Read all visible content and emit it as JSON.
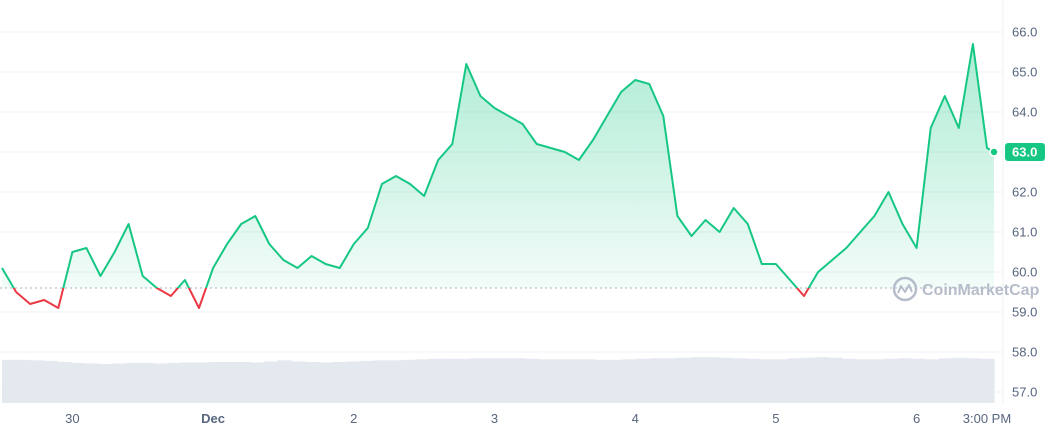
{
  "chart_data": {
    "type": "line",
    "title": "",
    "xlabel": "",
    "ylabel": "",
    "ylim": [
      56.7,
      66.3
    ],
    "y_ticks": [
      "57.0",
      "58.0",
      "59.0",
      "60.0",
      "61.0",
      "62.0",
      "63.0",
      "64.0",
      "65.0",
      "66.0"
    ],
    "x_ticks": [
      {
        "label": "30",
        "t": 0.5,
        "bold": false
      },
      {
        "label": "Dec",
        "t": 1.5,
        "bold": true
      },
      {
        "label": "2",
        "t": 2.5,
        "bold": false
      },
      {
        "label": "3",
        "t": 3.5,
        "bold": false
      },
      {
        "label": "4",
        "t": 4.5,
        "bold": false
      },
      {
        "label": "5",
        "t": 5.5,
        "bold": false
      },
      {
        "label": "6",
        "t": 6.5,
        "bold": false
      },
      {
        "label": "3:00 PM",
        "t": 7.0,
        "bold": false
      }
    ],
    "baseline": 59.6,
    "current_price": "63.0",
    "colors": {
      "up": "#16c784",
      "down": "#ea3943",
      "grid": "#eff2f5",
      "volume": "#e4e8ef",
      "axis_text": "#58667e"
    },
    "watermark": "CoinMarketCap",
    "grid": true,
    "series": [
      {
        "x": [
          0.0,
          0.1,
          0.2,
          0.3,
          0.4,
          0.5,
          0.6,
          0.7,
          0.8,
          0.9,
          1.0,
          1.1,
          1.2,
          1.3,
          1.4,
          1.5,
          1.6,
          1.7,
          1.8,
          1.9,
          2.0,
          2.1,
          2.2,
          2.3,
          2.4,
          2.5,
          2.6,
          2.7,
          2.8,
          2.9,
          3.0,
          3.1,
          3.2,
          3.3,
          3.4,
          3.5,
          3.6,
          3.7,
          3.8,
          3.9,
          4.0,
          4.1,
          4.2,
          4.3,
          4.4,
          4.5,
          4.6,
          4.7,
          4.8,
          4.9,
          5.0,
          5.1,
          5.2,
          5.3,
          5.4,
          5.5,
          5.6,
          5.7,
          5.8,
          5.9,
          6.0,
          6.1,
          6.2,
          6.3,
          6.4,
          6.5,
          6.6,
          6.7,
          6.8,
          6.9,
          7.0,
          7.05
        ],
        "values": [
          60.1,
          59.5,
          59.2,
          59.3,
          59.1,
          60.5,
          60.6,
          59.9,
          60.5,
          61.2,
          59.9,
          59.6,
          59.4,
          59.8,
          59.1,
          60.1,
          60.7,
          61.2,
          61.4,
          60.7,
          60.3,
          60.1,
          60.4,
          60.2,
          60.1,
          60.7,
          61.1,
          62.2,
          62.4,
          62.2,
          61.9,
          62.8,
          63.2,
          65.2,
          64.4,
          64.1,
          63.9,
          63.7,
          63.2,
          63.1,
          63.0,
          62.8,
          63.3,
          63.9,
          64.5,
          64.8,
          64.7,
          63.9,
          61.4,
          60.9,
          61.3,
          61.0,
          61.6,
          61.2,
          60.2,
          60.2,
          59.8,
          59.4,
          60.0,
          60.3,
          60.6,
          61.0,
          61.4,
          62.0,
          61.2,
          60.6,
          63.6,
          64.4,
          63.6,
          65.7,
          63.1,
          63.0
        ]
      }
    ],
    "volume": [
      0.83,
      0.83,
      0.82,
      0.81,
      0.79,
      0.77,
      0.76,
      0.75,
      0.76,
      0.77,
      0.77,
      0.76,
      0.77,
      0.78,
      0.78,
      0.79,
      0.79,
      0.79,
      0.78,
      0.8,
      0.82,
      0.8,
      0.79,
      0.78,
      0.79,
      0.8,
      0.81,
      0.82,
      0.82,
      0.83,
      0.84,
      0.85,
      0.85,
      0.85,
      0.86,
      0.86,
      0.86,
      0.86,
      0.85,
      0.84,
      0.84,
      0.84,
      0.84,
      0.83,
      0.83,
      0.84,
      0.85,
      0.86,
      0.86,
      0.87,
      0.88,
      0.88,
      0.87,
      0.86,
      0.85,
      0.84,
      0.84,
      0.86,
      0.87,
      0.88,
      0.87,
      0.85,
      0.84,
      0.84,
      0.85,
      0.86,
      0.85,
      0.84,
      0.86,
      0.87,
      0.86,
      0.85
    ]
  }
}
